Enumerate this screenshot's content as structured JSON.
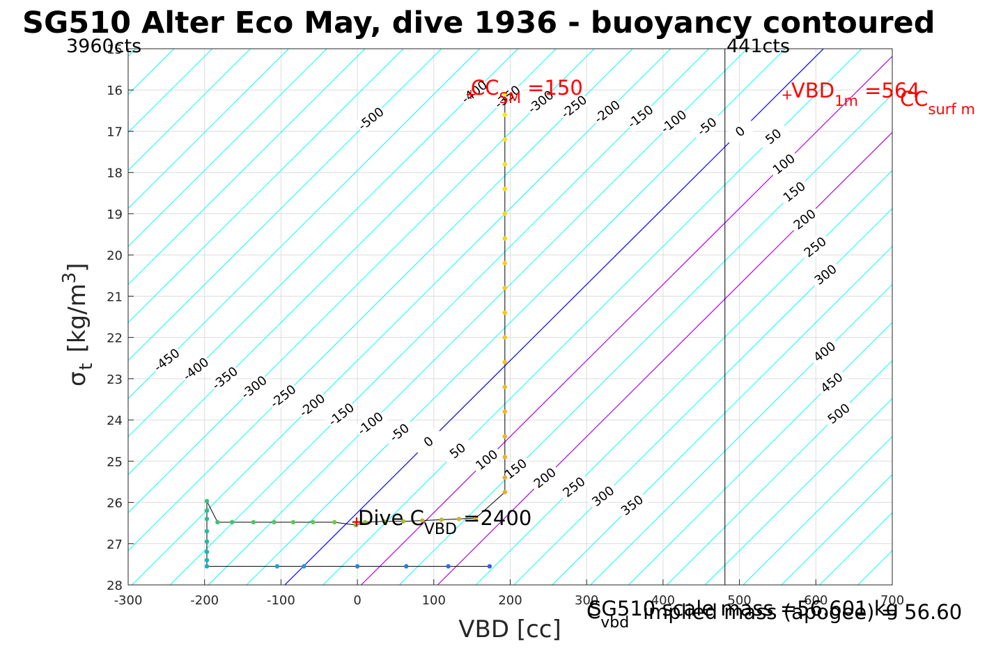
{
  "chart_data": {
    "type": "scatter",
    "title": "SG510 Alter Eco May, dive 1936 - buoyancy contoured",
    "xlabel": "VBD [cc]",
    "ylabel_main": "σ",
    "ylabel_sub": "t",
    "ylabel_unit": " [kg/m",
    "ylabel_sup": "3",
    "ylabel_close": "]",
    "xlim": [
      -300,
      700
    ],
    "ylim": [
      15,
      28
    ],
    "y_reversed": true,
    "grid": true,
    "xticks": [
      -300,
      -200,
      -100,
      0,
      100,
      200,
      300,
      400,
      500,
      600,
      700
    ],
    "yticks": [
      15,
      16,
      17,
      18,
      19,
      20,
      21,
      22,
      23,
      24,
      25,
      26,
      27,
      28
    ],
    "corner_labels": {
      "left": "3960cts",
      "right": "441cts"
    },
    "counts_limit_line_x": 481,
    "contours": {
      "base_line": {
        "x_at_top": 610,
        "x_at_bottom": -95
      },
      "spacing_cc": 50,
      "levels": [
        -500,
        -450,
        -400,
        -350,
        -300,
        -250,
        -200,
        -150,
        -100,
        -50,
        0,
        50,
        100,
        150,
        200,
        250,
        300,
        350,
        400,
        450,
        500
      ],
      "labels_lower": [
        -450,
        -400,
        -350,
        -300,
        -250,
        -200,
        -150,
        -100,
        -50,
        0,
        50,
        100,
        150,
        200,
        250,
        300,
        350
      ],
      "labels_upper": [
        -500,
        -400,
        -350,
        -300,
        -250,
        -200,
        -150,
        -100,
        -50,
        0,
        50,
        100,
        150,
        200,
        250,
        300
      ],
      "labels_right": [
        400,
        450,
        500
      ],
      "highlight_levels": [
        100,
        200
      ],
      "colors": {
        "grid": "#dcdcdc",
        "contour": "#00ffff",
        "zero": "#0000ff",
        "highlight": "#b000e8",
        "track": "#000000"
      }
    },
    "series": [
      {
        "color_scale": "depth (yellow = shallow, blue = deep)",
        "points": [
          {
            "x": 193,
            "y": 16.1
          },
          {
            "x": 193,
            "y": 16.6
          },
          {
            "x": 193,
            "y": 17.2
          },
          {
            "x": 193,
            "y": 17.8
          },
          {
            "x": 193,
            "y": 18.4
          },
          {
            "x": 193,
            "y": 19.0
          },
          {
            "x": 193,
            "y": 19.6
          },
          {
            "x": 193,
            "y": 20.2
          },
          {
            "x": 193,
            "y": 20.8
          },
          {
            "x": 193,
            "y": 21.4
          },
          {
            "x": 193,
            "y": 22.0
          },
          {
            "x": 193,
            "y": 22.6
          },
          {
            "x": 193,
            "y": 23.2
          },
          {
            "x": 193,
            "y": 23.8
          },
          {
            "x": 193,
            "y": 24.4
          },
          {
            "x": 193,
            "y": 24.9
          },
          {
            "x": 193,
            "y": 25.4
          },
          {
            "x": 193,
            "y": 25.75
          },
          {
            "x": 155,
            "y": 26.38
          },
          {
            "x": 133,
            "y": 26.4
          },
          {
            "x": 110,
            "y": 26.42
          },
          {
            "x": 85,
            "y": 26.44
          },
          {
            "x": 60,
            "y": 26.46
          },
          {
            "x": 35,
            "y": 26.46
          },
          {
            "x": 10,
            "y": 26.48
          },
          {
            "x": -2,
            "y": 26.55
          },
          {
            "x": -30,
            "y": 26.48
          },
          {
            "x": -58,
            "y": 26.48
          },
          {
            "x": -84,
            "y": 26.48
          },
          {
            "x": -109,
            "y": 26.48
          },
          {
            "x": -136,
            "y": 26.48
          },
          {
            "x": -164,
            "y": 26.48
          },
          {
            "x": -183,
            "y": 26.48
          },
          {
            "x": -197,
            "y": 25.97
          },
          {
            "x": -197,
            "y": 26.2
          },
          {
            "x": -197,
            "y": 26.4
          },
          {
            "x": -197,
            "y": 26.7
          },
          {
            "x": -197,
            "y": 26.95
          },
          {
            "x": -197,
            "y": 27.2
          },
          {
            "x": -197,
            "y": 27.4
          },
          {
            "x": -197,
            "y": 27.55
          },
          {
            "x": -105,
            "y": 27.55
          },
          {
            "x": -70,
            "y": 27.55
          },
          {
            "x": 0,
            "y": 27.55
          },
          {
            "x": 64,
            "y": 27.55
          },
          {
            "x": 119,
            "y": 27.55
          },
          {
            "x": 173,
            "y": 27.55
          }
        ]
      }
    ],
    "annotations": {
      "cc_sm": {
        "main": "CC",
        "sub": "SM",
        "value": " =150"
      },
      "vbd_1m": {
        "main": "VBD",
        "sub": "1m",
        "value": " =564"
      },
      "cc_surf": {
        "main": "CC",
        "sub": "surf m"
      },
      "dive_c": {
        "main": "Dive C",
        "sub": "VBD",
        "value": " =2400"
      },
      "c_vbd": {
        "main": "C",
        "sub": "vbd"
      },
      "scale_mass": "SG510 scale mass =56.601 kg",
      "implied_mass": "implied mass (apogee) = 56.60"
    }
  }
}
